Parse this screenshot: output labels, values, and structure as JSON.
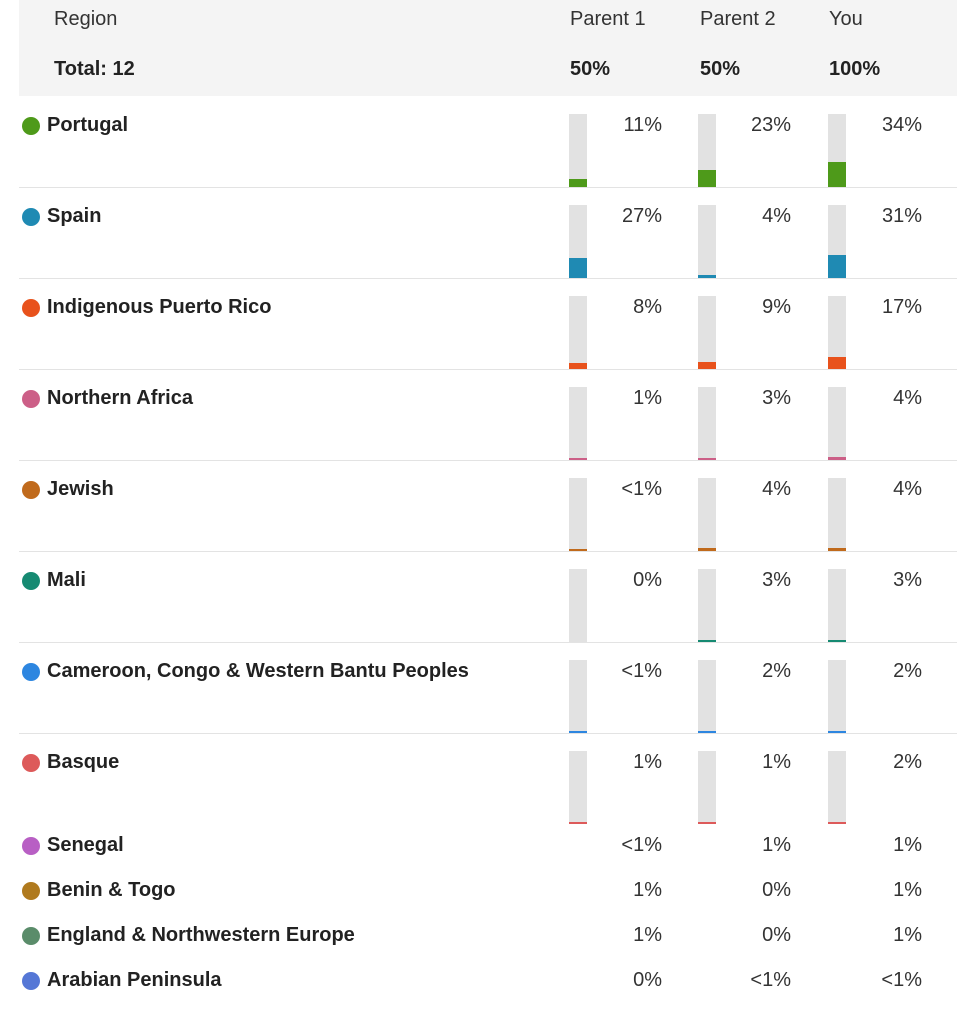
{
  "header": {
    "region_label": "Region",
    "total_label": "Total: 12",
    "columns": [
      {
        "label": "Parent 1",
        "total": "50%"
      },
      {
        "label": "Parent 2",
        "total": "50%"
      },
      {
        "label": "You",
        "total": "100%"
      }
    ]
  },
  "rows": [
    {
      "name": "Portugal",
      "color": "#4e9a1a",
      "values": [
        "11%",
        "23%",
        "34%"
      ],
      "levels": [
        0.11,
        0.23,
        0.34
      ]
    },
    {
      "name": "Spain",
      "color": "#1f8ab3",
      "values": [
        "27%",
        "4%",
        "31%"
      ],
      "levels": [
        0.27,
        0.04,
        0.31
      ]
    },
    {
      "name": "Indigenous Puerto Rico",
      "color": "#e8521c",
      "values": [
        "8%",
        "9%",
        "17%"
      ],
      "levels": [
        0.08,
        0.09,
        0.17
      ]
    },
    {
      "name": "Northern Africa",
      "color": "#cc5f87",
      "values": [
        "1%",
        "3%",
        "4%"
      ],
      "levels": [
        0.01,
        0.03,
        0.04
      ]
    },
    {
      "name": "Jewish",
      "color": "#c06a1c",
      "values": [
        "<1%",
        "4%",
        "4%"
      ],
      "levels": [
        0.005,
        0.04,
        0.04
      ]
    },
    {
      "name": "Mali",
      "color": "#168a72",
      "values": [
        "0%",
        "3%",
        "3%"
      ],
      "levels": [
        0,
        0.03,
        0.03
      ]
    },
    {
      "name": "Cameroon, Congo & Western Bantu Peoples",
      "color": "#2d86e0",
      "values": [
        "<1%",
        "2%",
        "2%"
      ],
      "levels": [
        0.005,
        0.02,
        0.02
      ]
    },
    {
      "name": "Basque",
      "color": "#dd5a5a",
      "values": [
        "1%",
        "1%",
        "2%"
      ],
      "levels": [
        0.01,
        0.01,
        0.02
      ]
    },
    {
      "name": "Senegal",
      "color": "#b85fc4",
      "values": [
        "<1%",
        "1%",
        "1%"
      ]
    },
    {
      "name": "Benin & Togo",
      "color": "#b07a1e",
      "values": [
        "1%",
        "0%",
        "1%"
      ]
    },
    {
      "name": "England & Northwestern Europe",
      "color": "#5a8c6a",
      "values": [
        "1%",
        "0%",
        "1%"
      ]
    },
    {
      "name": "Arabian Peninsula",
      "color": "#5577d6",
      "values": [
        "0%",
        "<1%",
        "<1%"
      ]
    }
  ]
}
